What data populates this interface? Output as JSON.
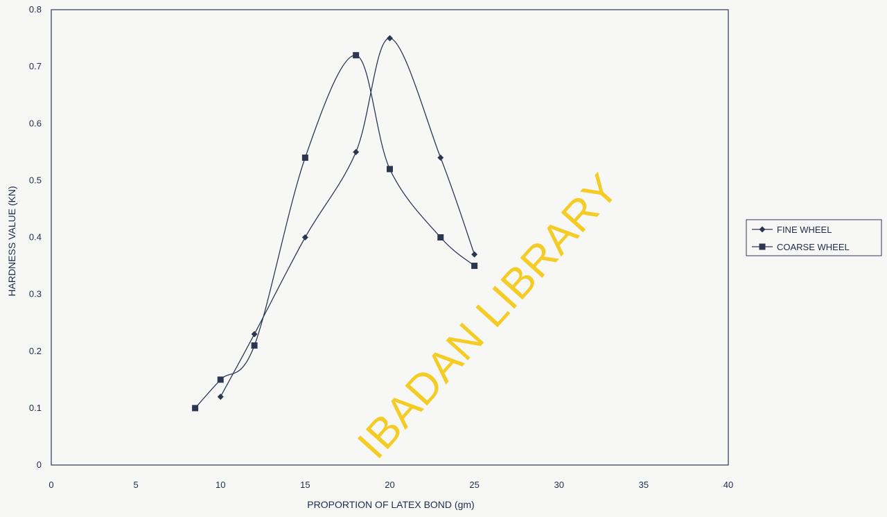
{
  "chart_data": {
    "type": "line",
    "title": "",
    "xlabel": "PROPORTION OF LATEX BOND (gm)",
    "ylabel": "HARDNESS VALUE (KN)",
    "xlim": [
      0,
      40
    ],
    "ylim": [
      0,
      0.8
    ],
    "xticks": [
      0,
      5,
      10,
      15,
      20,
      25,
      30,
      35,
      40
    ],
    "yticks": [
      0,
      0.1,
      0.2,
      0.3,
      0.4,
      0.5,
      0.6,
      0.7,
      0.8
    ],
    "grid": false,
    "legend_position": "right",
    "series": [
      {
        "name": "FINE WHEEL",
        "marker": "diamond",
        "x": [
          10,
          12,
          15,
          18,
          20,
          23,
          25
        ],
        "y": [
          0.12,
          0.23,
          0.4,
          0.55,
          0.75,
          0.54,
          0.37
        ]
      },
      {
        "name": "COARSE WHEEL",
        "marker": "square",
        "x": [
          8.5,
          10,
          12,
          15,
          18,
          20,
          23,
          25
        ],
        "y": [
          0.1,
          0.15,
          0.21,
          0.54,
          0.72,
          0.52,
          0.4,
          0.35
        ]
      }
    ],
    "watermark": "IBADAN LIBRARY",
    "colors": {
      "line": "#2d3650",
      "text": "#1f2a4a",
      "watermark": "#f5c400"
    }
  }
}
